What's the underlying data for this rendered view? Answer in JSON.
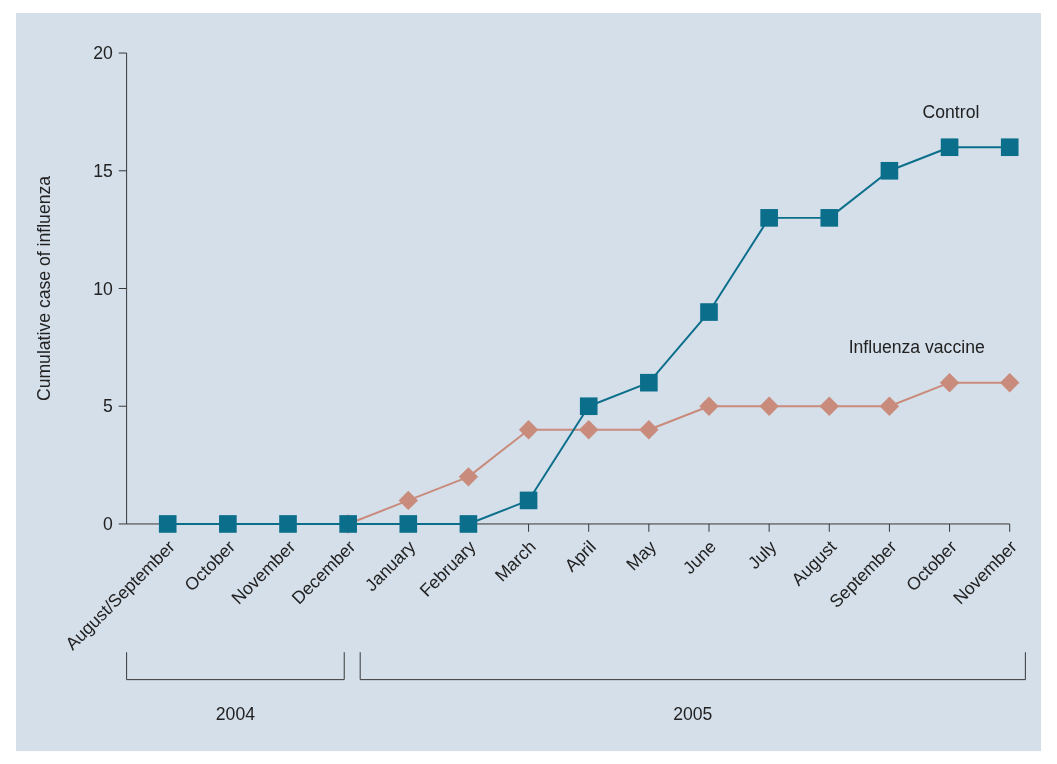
{
  "chart_data": {
    "type": "line",
    "ylabel": "Cumulative case of influenza",
    "categories": [
      "August/September",
      "October",
      "November",
      "December",
      "January",
      "February",
      "March",
      "April",
      "May",
      "June",
      "July",
      "August",
      "September",
      "October",
      "November"
    ],
    "series": [
      {
        "name": "Control",
        "color": "#0b6e8b",
        "marker": "square",
        "values": [
          0,
          0,
          0,
          0,
          0,
          0,
          1,
          5,
          6,
          9,
          13,
          13,
          15,
          16,
          16
        ]
      },
      {
        "name": "Influenza vaccine",
        "color": "#c98b7b",
        "marker": "diamond",
        "values": [
          null,
          null,
          null,
          0,
          1,
          2,
          4,
          4,
          4,
          5,
          5,
          5,
          5,
          6,
          6
        ]
      }
    ],
    "ylim": [
      0,
      20
    ],
    "yticks": [
      0,
      5,
      10,
      15,
      20
    ],
    "grid": false,
    "annotations": [
      "2004",
      "2005"
    ]
  }
}
